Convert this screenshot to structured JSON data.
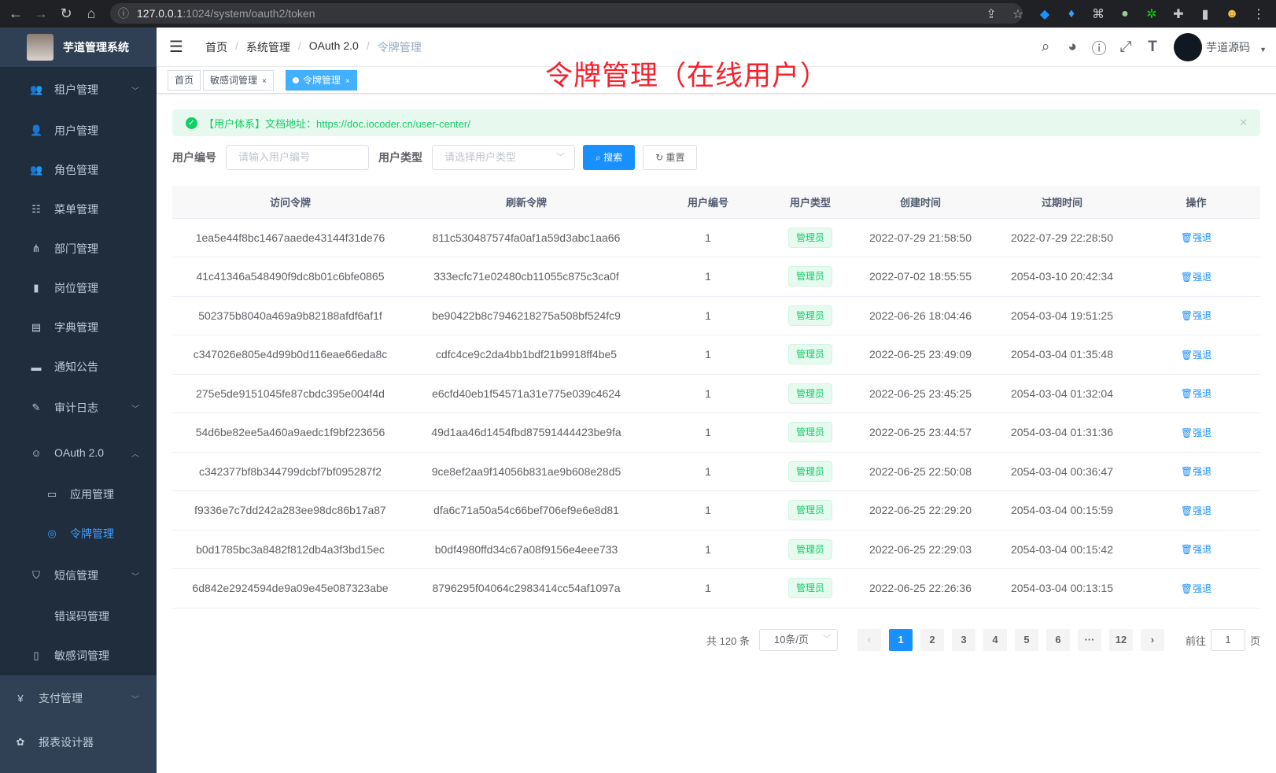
{
  "browser": {
    "url_host": "127.0.0.1",
    "url_path": ":1024/system/oauth2/token"
  },
  "app": {
    "title": "芋道管理系统"
  },
  "sidebar": {
    "items": [
      {
        "label": "租户管理",
        "icon": "peoples-icon",
        "expandable": true
      },
      {
        "label": "用户管理",
        "icon": "user-icon"
      },
      {
        "label": "角色管理",
        "icon": "peoples-icon"
      },
      {
        "label": "菜单管理",
        "icon": "tree-table-icon"
      },
      {
        "label": "部门管理",
        "icon": "tree-icon"
      },
      {
        "label": "岗位管理",
        "icon": "post-icon"
      },
      {
        "label": "字典管理",
        "icon": "dict-icon"
      },
      {
        "label": "通知公告",
        "icon": "message-icon"
      },
      {
        "label": "审计日志",
        "icon": "log-icon",
        "expandable": true
      },
      {
        "label": "OAuth 2.0",
        "icon": "people-icon",
        "expanded": true
      },
      {
        "label": "应用管理",
        "icon": "application-icon",
        "sub": true
      },
      {
        "label": "令牌管理",
        "icon": "online-icon",
        "sub": true,
        "active": true
      },
      {
        "label": "短信管理",
        "icon": "validCode-icon",
        "expandable": true
      },
      {
        "label": "错误码管理",
        "icon": "code-icon"
      },
      {
        "label": "敏感词管理",
        "icon": "education-icon"
      },
      {
        "label": "支付管理",
        "icon": "money-icon",
        "expandable": true,
        "top": true
      },
      {
        "label": "报表设计器",
        "icon": "chart-icon",
        "top": true
      }
    ]
  },
  "breadcrumb": [
    "首页",
    "系统管理",
    "OAuth 2.0",
    "令牌管理"
  ],
  "header": {
    "username": "芋道源码"
  },
  "tags": [
    {
      "label": "首页"
    },
    {
      "label": "敏感词管理",
      "closable": true
    },
    {
      "label": "令牌管理",
      "closable": true,
      "active": true
    }
  ],
  "annotation": "令牌管理（在线用户）",
  "alert": {
    "text": "【用户体系】文档地址：https://doc.iocoder.cn/user-center/"
  },
  "search": {
    "user_id_label": "用户编号",
    "user_id_placeholder": "请输入用户编号",
    "user_type_label": "用户类型",
    "user_type_placeholder": "请选择用户类型",
    "search_label": "搜索",
    "reset_label": "重置"
  },
  "table": {
    "columns": [
      "访问令牌",
      "刷新令牌",
      "用户编号",
      "用户类型",
      "创建时间",
      "过期时间",
      "操作"
    ],
    "action_label": "强退",
    "rows": [
      [
        "1ea5e44f8bc1467aaede43144f31de76",
        "811c530487574fa0af1a59d3abc1aa66",
        "1",
        "管理员",
        "2022-07-29 21:58:50",
        "2022-07-29 22:28:50"
      ],
      [
        "41c41346a548490f9dc8b01c6bfe0865",
        "333ecfc71e02480cb11055c875c3ca0f",
        "1",
        "管理员",
        "2022-07-02 18:55:55",
        "2054-03-10 20:42:34"
      ],
      [
        "502375b8040a469a9b82188afdf6af1f",
        "be90422b8c7946218275a508bf524fc9",
        "1",
        "管理员",
        "2022-06-26 18:04:46",
        "2054-03-04 19:51:25"
      ],
      [
        "c347026e805e4d99b0d116eae66eda8c",
        "cdfc4ce9c2da4bb1bdf21b9918ff4be5",
        "1",
        "管理员",
        "2022-06-25 23:49:09",
        "2054-03-04 01:35:48"
      ],
      [
        "275e5de9151045fe87cbdc395e004f4d",
        "e6cfd40eb1f54571a31e775e039c4624",
        "1",
        "管理员",
        "2022-06-25 23:45:25",
        "2054-03-04 01:32:04"
      ],
      [
        "54d6be82ee5a460a9aedc1f9bf223656",
        "49d1aa46d1454fbd87591444423be9fa",
        "1",
        "管理员",
        "2022-06-25 23:44:57",
        "2054-03-04 01:31:36"
      ],
      [
        "c342377bf8b344799dcbf7bf095287f2",
        "9ce8ef2aa9f14056b831ae9b608e28d5",
        "1",
        "管理员",
        "2022-06-25 22:50:08",
        "2054-03-04 00:36:47"
      ],
      [
        "f9336e7c7dd242a283ee98dc86b17a87",
        "dfa6c71a50a54c66bef706ef9e6e8d81",
        "1",
        "管理员",
        "2022-06-25 22:29:20",
        "2054-03-04 00:15:59"
      ],
      [
        "b0d1785bc3a8482f812db4a3f3bd15ec",
        "b0df4980ffd34c67a08f9156e4eee733",
        "1",
        "管理员",
        "2022-06-25 22:29:03",
        "2054-03-04 00:15:42"
      ],
      [
        "6d842e2924594de9a09e45e087323abe",
        "8796295f04064c2983414cc54af1097a",
        "1",
        "管理员",
        "2022-06-25 22:26:36",
        "2054-03-04 00:13:15"
      ]
    ]
  },
  "pagination": {
    "total_text": "共 120 条",
    "page_size": "10条/页",
    "pages": [
      "1",
      "2",
      "3",
      "4",
      "5",
      "6",
      "···",
      "12"
    ],
    "current": "1",
    "goto_label": "前往",
    "goto_value": "1",
    "page_unit": "页"
  },
  "colors": {
    "primary": "#1890ff",
    "sidebar": "#304156",
    "success": "#13ce66",
    "annotation": "#f5222d"
  }
}
